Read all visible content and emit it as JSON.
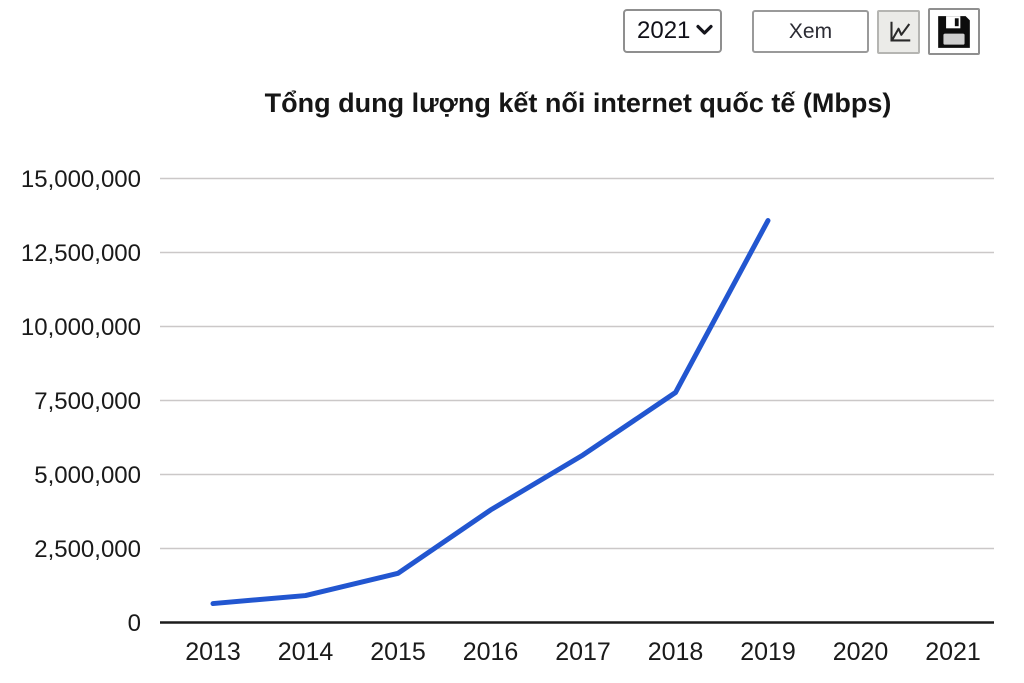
{
  "toolbar": {
    "year_select": {
      "value": "2021"
    },
    "view_button_label": "Xem"
  },
  "chart_data": {
    "type": "line",
    "title": "Tổng dung lượng kết nối internet quốc tế (Mbps)",
    "x": [
      "2013",
      "2014",
      "2015",
      "2016",
      "2017",
      "2018",
      "2019",
      "2020",
      "2021"
    ],
    "series": [
      {
        "name": "Tổng dung lượng kết nối internet quốc tế (Mbps)",
        "values": [
          640000,
          910000,
          1660000,
          3800000,
          5660000,
          7770000,
          13580000,
          null,
          null
        ]
      }
    ],
    "xlabel": "",
    "ylabel": "",
    "ylim": [
      0,
      15000000
    ],
    "yticks": [
      0,
      2500000,
      5000000,
      7500000,
      10000000,
      12500000,
      15000000
    ],
    "ytick_labels": [
      "0",
      "2,500,000",
      "5,000,000",
      "7,500,000",
      "10,000,000",
      "12,500,000",
      "15,000,000"
    ],
    "grid": true,
    "legend_position": "none",
    "line_color": "#2256d0",
    "grid_color": "#cbc8c8",
    "axis_color": "#1c1c1c",
    "text_color": "#1a1a1a"
  }
}
